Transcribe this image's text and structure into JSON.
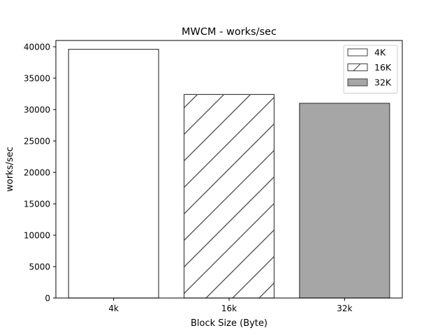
{
  "chart_data": {
    "type": "bar",
    "title": "MWCM - works/sec",
    "xlabel": "Block Size (Byte)",
    "ylabel": "works/sec",
    "categories": [
      "4k",
      "16k",
      "32k"
    ],
    "values": [
      39600,
      32400,
      31000
    ],
    "ylim": [
      0,
      41000
    ],
    "yticks": [
      0,
      5000,
      10000,
      15000,
      20000,
      25000,
      30000,
      35000,
      40000
    ],
    "grid": false,
    "legend_position": "top-right",
    "legend": [
      {
        "label": "4K",
        "fill": "#ffffff",
        "pattern": "none"
      },
      {
        "label": "16K",
        "fill": "#ffffff",
        "pattern": "diagonal-hatch"
      },
      {
        "label": "32K",
        "fill": "#a6a6a6",
        "pattern": "none"
      }
    ],
    "edge_color": "#3f3f3f"
  }
}
